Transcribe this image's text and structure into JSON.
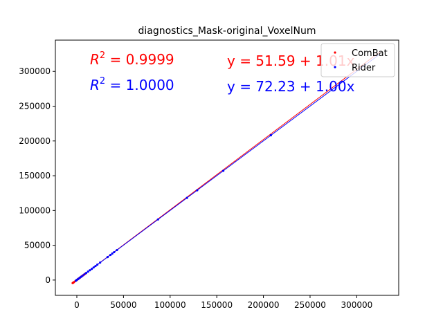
{
  "chart_data": {
    "type": "scatter",
    "title": "diagnostics_Mask-original_VoxelNum",
    "xlabel": "",
    "ylabel": "",
    "xlim": [
      -23000,
      345000
    ],
    "ylim": [
      -22000,
      345000
    ],
    "xticks": [
      0,
      50000,
      100000,
      150000,
      200000,
      250000,
      300000
    ],
    "yticks": [
      0,
      50000,
      100000,
      150000,
      200000,
      250000,
      300000
    ],
    "grid": false,
    "legend_position": "top-right",
    "annotations": {
      "combat_r2": "R^2 = 0.9999",
      "rider_r2": "R^2 = 1.0000",
      "combat_eq": "y = 51.59 + 1.01x",
      "rider_eq": "y = 72.23 + 1.00x"
    },
    "series": [
      {
        "name": "ComBat",
        "color": "#ff0000",
        "x": [
          -4500,
          -3800,
          -3000,
          -1500,
          0,
          1000,
          2000,
          3500,
          5000,
          7000,
          9000
        ],
        "y": [
          -4400,
          -3700,
          -2900,
          -1400,
          100,
          1100,
          2100,
          3600,
          5100,
          7100,
          9100
        ],
        "fit": {
          "intercept": 51.59,
          "slope": 1.01
        }
      },
      {
        "name": "Rider",
        "color": "#0000ff",
        "x": [
          -1000,
          0,
          1500,
          3000,
          4500,
          6000,
          8000,
          10000,
          12000,
          14000,
          16000,
          18000,
          20000,
          22000,
          25000,
          33000,
          36000,
          38000,
          40000,
          43000,
          87000,
          118000,
          129000,
          157000,
          208000
        ],
        "y": [
          -900,
          100,
          1600,
          3100,
          4600,
          6100,
          8100,
          10100,
          12100,
          14100,
          16100,
          18100,
          20100,
          22100,
          25100,
          33100,
          36100,
          38100,
          40100,
          43100,
          87100,
          118100,
          129100,
          157100,
          208100
        ],
        "fit": {
          "intercept": 72.23,
          "slope": 1.0
        }
      }
    ]
  }
}
